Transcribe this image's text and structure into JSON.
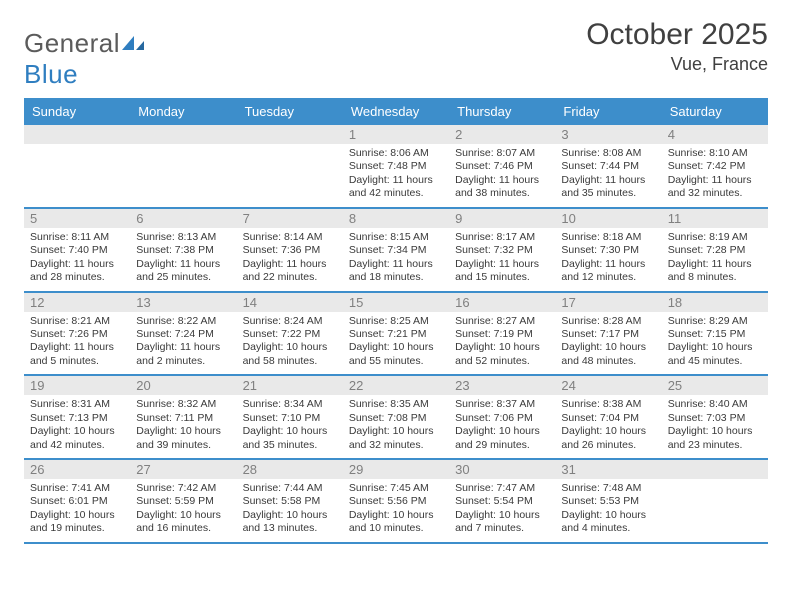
{
  "header": {
    "logo_word1": "General",
    "logo_word2": "Blue",
    "month_title": "October 2025",
    "location": "Vue, France"
  },
  "colors": {
    "header_bar": "#3d8ecb",
    "week_divider": "#3d8ecb",
    "daybar_bg": "#e9e9e9",
    "text": "#3a3a3a",
    "daynum": "#808080"
  },
  "day_labels": [
    "Sunday",
    "Monday",
    "Tuesday",
    "Wednesday",
    "Thursday",
    "Friday",
    "Saturday"
  ],
  "weeks": [
    [
      null,
      null,
      null,
      {
        "n": "1",
        "sr": "8:06 AM",
        "ss": "7:48 PM",
        "dl": "11 hours and 42 minutes."
      },
      {
        "n": "2",
        "sr": "8:07 AM",
        "ss": "7:46 PM",
        "dl": "11 hours and 38 minutes."
      },
      {
        "n": "3",
        "sr": "8:08 AM",
        "ss": "7:44 PM",
        "dl": "11 hours and 35 minutes."
      },
      {
        "n": "4",
        "sr": "8:10 AM",
        "ss": "7:42 PM",
        "dl": "11 hours and 32 minutes."
      }
    ],
    [
      {
        "n": "5",
        "sr": "8:11 AM",
        "ss": "7:40 PM",
        "dl": "11 hours and 28 minutes."
      },
      {
        "n": "6",
        "sr": "8:13 AM",
        "ss": "7:38 PM",
        "dl": "11 hours and 25 minutes."
      },
      {
        "n": "7",
        "sr": "8:14 AM",
        "ss": "7:36 PM",
        "dl": "11 hours and 22 minutes."
      },
      {
        "n": "8",
        "sr": "8:15 AM",
        "ss": "7:34 PM",
        "dl": "11 hours and 18 minutes."
      },
      {
        "n": "9",
        "sr": "8:17 AM",
        "ss": "7:32 PM",
        "dl": "11 hours and 15 minutes."
      },
      {
        "n": "10",
        "sr": "8:18 AM",
        "ss": "7:30 PM",
        "dl": "11 hours and 12 minutes."
      },
      {
        "n": "11",
        "sr": "8:19 AM",
        "ss": "7:28 PM",
        "dl": "11 hours and 8 minutes."
      }
    ],
    [
      {
        "n": "12",
        "sr": "8:21 AM",
        "ss": "7:26 PM",
        "dl": "11 hours and 5 minutes."
      },
      {
        "n": "13",
        "sr": "8:22 AM",
        "ss": "7:24 PM",
        "dl": "11 hours and 2 minutes."
      },
      {
        "n": "14",
        "sr": "8:24 AM",
        "ss": "7:22 PM",
        "dl": "10 hours and 58 minutes."
      },
      {
        "n": "15",
        "sr": "8:25 AM",
        "ss": "7:21 PM",
        "dl": "10 hours and 55 minutes."
      },
      {
        "n": "16",
        "sr": "8:27 AM",
        "ss": "7:19 PM",
        "dl": "10 hours and 52 minutes."
      },
      {
        "n": "17",
        "sr": "8:28 AM",
        "ss": "7:17 PM",
        "dl": "10 hours and 48 minutes."
      },
      {
        "n": "18",
        "sr": "8:29 AM",
        "ss": "7:15 PM",
        "dl": "10 hours and 45 minutes."
      }
    ],
    [
      {
        "n": "19",
        "sr": "8:31 AM",
        "ss": "7:13 PM",
        "dl": "10 hours and 42 minutes."
      },
      {
        "n": "20",
        "sr": "8:32 AM",
        "ss": "7:11 PM",
        "dl": "10 hours and 39 minutes."
      },
      {
        "n": "21",
        "sr": "8:34 AM",
        "ss": "7:10 PM",
        "dl": "10 hours and 35 minutes."
      },
      {
        "n": "22",
        "sr": "8:35 AM",
        "ss": "7:08 PM",
        "dl": "10 hours and 32 minutes."
      },
      {
        "n": "23",
        "sr": "8:37 AM",
        "ss": "7:06 PM",
        "dl": "10 hours and 29 minutes."
      },
      {
        "n": "24",
        "sr": "8:38 AM",
        "ss": "7:04 PM",
        "dl": "10 hours and 26 minutes."
      },
      {
        "n": "25",
        "sr": "8:40 AM",
        "ss": "7:03 PM",
        "dl": "10 hours and 23 minutes."
      }
    ],
    [
      {
        "n": "26",
        "sr": "7:41 AM",
        "ss": "6:01 PM",
        "dl": "10 hours and 19 minutes."
      },
      {
        "n": "27",
        "sr": "7:42 AM",
        "ss": "5:59 PM",
        "dl": "10 hours and 16 minutes."
      },
      {
        "n": "28",
        "sr": "7:44 AM",
        "ss": "5:58 PM",
        "dl": "10 hours and 13 minutes."
      },
      {
        "n": "29",
        "sr": "7:45 AM",
        "ss": "5:56 PM",
        "dl": "10 hours and 10 minutes."
      },
      {
        "n": "30",
        "sr": "7:47 AM",
        "ss": "5:54 PM",
        "dl": "10 hours and 7 minutes."
      },
      {
        "n": "31",
        "sr": "7:48 AM",
        "ss": "5:53 PM",
        "dl": "10 hours and 4 minutes."
      },
      null
    ]
  ],
  "labels": {
    "sunrise": "Sunrise: ",
    "sunset": "Sunset: ",
    "daylight": "Daylight: "
  }
}
